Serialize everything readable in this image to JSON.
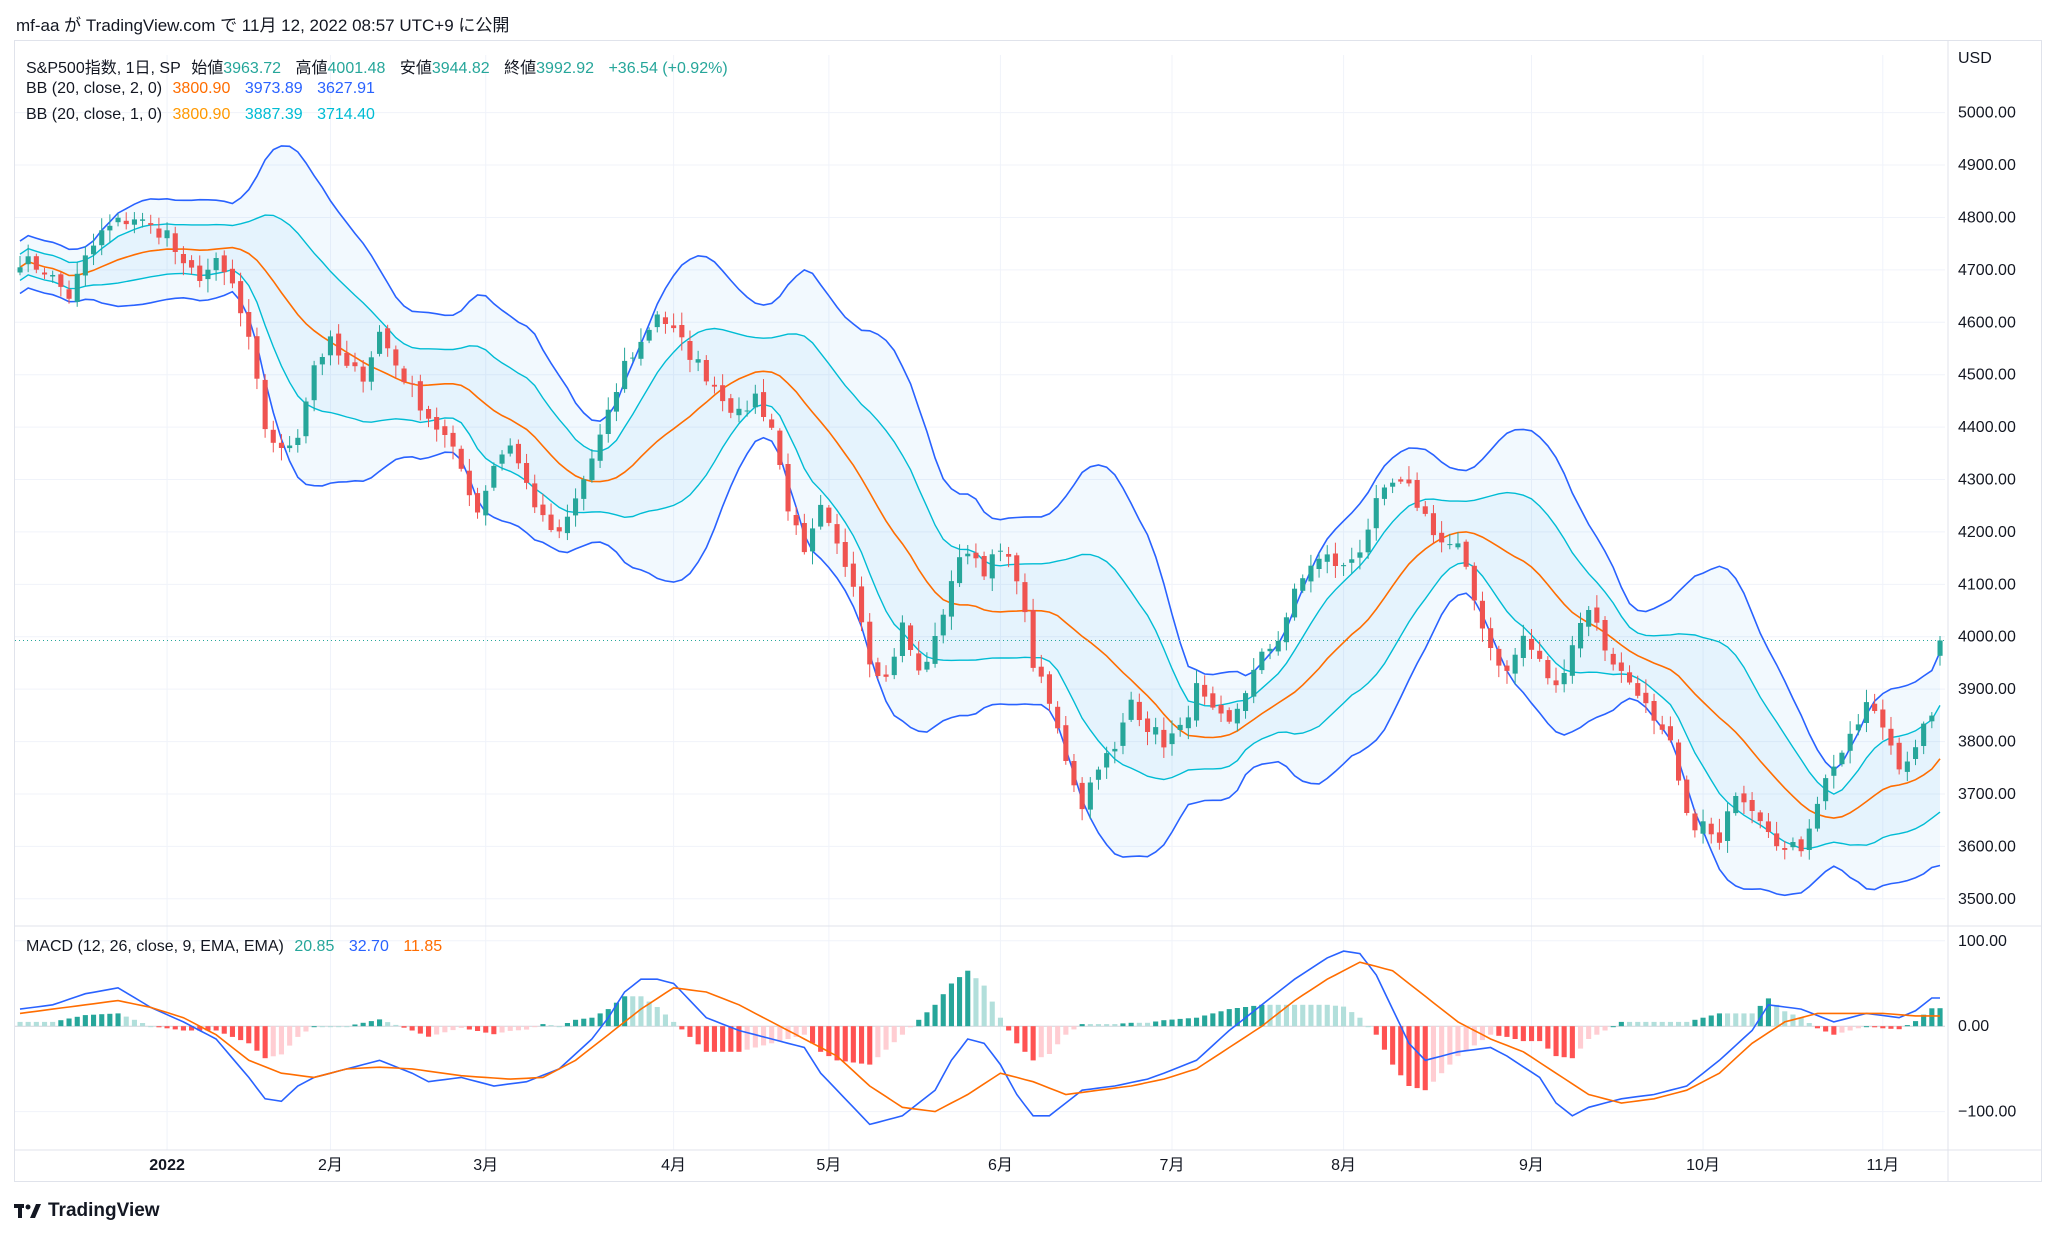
{
  "header": {
    "publisher_line": "mf-aa が TradingView.com で 11月 12, 2022 08:57 UTC+9 に公開"
  },
  "legend": {
    "symbol": "S&P500指数, 1日, SP",
    "open_label": "始値",
    "open": "3963.72",
    "high_label": "高値",
    "high": "4001.48",
    "low_label": "安値",
    "low": "3944.82",
    "close_label": "終値",
    "close": "3992.92",
    "change": "+36.54 (+0.92%)",
    "bb2": {
      "label": "BB (20, close, 2, 0)",
      "basis": "3800.90",
      "upper": "3973.89",
      "lower": "3627.91"
    },
    "bb1": {
      "label": "BB (20, close, 1, 0)",
      "basis": "3800.90",
      "upper": "3887.39",
      "lower": "3714.40"
    },
    "macd": {
      "label": "MACD (12, 26, close, 9, EMA, EMA)",
      "hist": "20.85",
      "macd": "32.70",
      "signal": "11.85"
    }
  },
  "footer": {
    "brand": "TradingView"
  },
  "colors": {
    "up": "#26a69a",
    "down": "#ef5350",
    "bb2_band": "#2962ff",
    "bb1_band": "#00bcd4",
    "basis": "#ff6d00",
    "macd_line": "#2962ff",
    "signal_line": "#ff6d00",
    "hist_up_strong": "#26a69a",
    "hist_up_weak": "#b2dfdb",
    "hist_down_strong": "#ff5252",
    "hist_down_weak": "#ffcdd2"
  },
  "chart_data": [
    {
      "type": "candlestick",
      "currency": "USD",
      "y_ticks": [
        "5000.00",
        "4900.00",
        "4800.00",
        "4700.00",
        "4600.00",
        "4500.00",
        "4400.00",
        "4300.00",
        "4200.00",
        "4100.00",
        "4000.00",
        "3900.00",
        "3800.00",
        "3700.00",
        "3600.00",
        "3500.00"
      ],
      "ylim": [
        3450,
        5110
      ],
      "x_labels": [
        {
          "label": "2022",
          "idx": 18
        },
        {
          "label": "2月",
          "idx": 38
        },
        {
          "label": "3月",
          "idx": 57
        },
        {
          "label": "4月",
          "idx": 80
        },
        {
          "label": "5月",
          "idx": 99
        },
        {
          "label": "6月",
          "idx": 120
        },
        {
          "label": "7月",
          "idx": 141
        },
        {
          "label": "8月",
          "idx": 162
        },
        {
          "label": "9月",
          "idx": 185
        },
        {
          "label": "10月",
          "idx": 206
        },
        {
          "label": "11月",
          "idx": 228
        }
      ],
      "x_count": 236,
      "close_anchors": [
        [
          0,
          4720
        ],
        [
          3,
          4700
        ],
        [
          6,
          4650
        ],
        [
          8,
          4720
        ],
        [
          10,
          4770
        ],
        [
          12,
          4790
        ],
        [
          14,
          4800
        ],
        [
          16,
          4780
        ],
        [
          18,
          4770
        ],
        [
          20,
          4700
        ],
        [
          22,
          4690
        ],
        [
          24,
          4710
        ],
        [
          26,
          4670
        ],
        [
          28,
          4560
        ],
        [
          30,
          4400
        ],
        [
          32,
          4350
        ],
        [
          34,
          4390
        ],
        [
          36,
          4520
        ],
        [
          38,
          4560
        ],
        [
          40,
          4510
        ],
        [
          42,
          4500
        ],
        [
          44,
          4580
        ],
        [
          46,
          4520
        ],
        [
          48,
          4470
        ],
        [
          50,
          4420
        ],
        [
          52,
          4380
        ],
        [
          54,
          4320
        ],
        [
          56,
          4240
        ],
        [
          58,
          4330
        ],
        [
          60,
          4370
        ],
        [
          62,
          4290
        ],
        [
          64,
          4220
        ],
        [
          66,
          4190
        ],
        [
          68,
          4260
        ],
        [
          70,
          4340
        ],
        [
          72,
          4420
        ],
        [
          74,
          4520
        ],
        [
          76,
          4560
        ],
        [
          78,
          4620
        ],
        [
          80,
          4580
        ],
        [
          82,
          4540
        ],
        [
          84,
          4500
        ],
        [
          86,
          4460
        ],
        [
          88,
          4420
        ],
        [
          90,
          4460
        ],
        [
          92,
          4400
        ],
        [
          94,
          4250
        ],
        [
          96,
          4150
        ],
        [
          98,
          4240
        ],
        [
          100,
          4170
        ],
        [
          102,
          4110
        ],
        [
          104,
          3960
        ],
        [
          106,
          3920
        ],
        [
          108,
          4020
        ],
        [
          110,
          3930
        ],
        [
          112,
          3990
        ],
        [
          114,
          4110
        ],
        [
          116,
          4170
        ],
        [
          118,
          4130
        ],
        [
          120,
          4160
        ],
        [
          122,
          4120
        ],
        [
          124,
          3950
        ],
        [
          126,
          3870
        ],
        [
          128,
          3770
        ],
        [
          130,
          3680
        ],
        [
          132,
          3760
        ],
        [
          134,
          3780
        ],
        [
          136,
          3880
        ],
        [
          138,
          3830
        ],
        [
          140,
          3800
        ],
        [
          142,
          3820
        ],
        [
          144,
          3900
        ],
        [
          146,
          3850
        ],
        [
          148,
          3830
        ],
        [
          150,
          3900
        ],
        [
          152,
          3960
        ],
        [
          154,
          4000
        ],
        [
          156,
          4080
        ],
        [
          158,
          4140
        ],
        [
          160,
          4150
        ],
        [
          162,
          4130
        ],
        [
          164,
          4170
        ],
        [
          166,
          4250
        ],
        [
          168,
          4290
        ],
        [
          170,
          4280
        ],
        [
          172,
          4230
        ],
        [
          174,
          4180
        ],
        [
          176,
          4170
        ],
        [
          178,
          4070
        ],
        [
          180,
          3980
        ],
        [
          182,
          3930
        ],
        [
          184,
          4000
        ],
        [
          186,
          3950
        ],
        [
          188,
          3900
        ],
        [
          190,
          3990
        ],
        [
          192,
          4060
        ],
        [
          194,
          3980
        ],
        [
          196,
          3930
        ],
        [
          198,
          3900
        ],
        [
          200,
          3830
        ],
        [
          202,
          3790
        ],
        [
          204,
          3650
        ],
        [
          206,
          3640
        ],
        [
          208,
          3600
        ],
        [
          210,
          3710
        ],
        [
          212,
          3680
        ],
        [
          214,
          3640
        ],
        [
          216,
          3590
        ],
        [
          218,
          3600
        ],
        [
          220,
          3690
        ],
        [
          222,
          3760
        ],
        [
          224,
          3800
        ],
        [
          226,
          3870
        ],
        [
          228,
          3830
        ],
        [
          230,
          3760
        ],
        [
          232,
          3780
        ],
        [
          234,
          3860
        ],
        [
          235,
          3993
        ]
      ]
    },
    {
      "type": "macd",
      "y_ticks": [
        "100.00",
        "0.00",
        "−100.00"
      ],
      "ylim": [
        -145,
        115
      ],
      "macd_anchors": [
        [
          0,
          20
        ],
        [
          4,
          25
        ],
        [
          8,
          38
        ],
        [
          12,
          45
        ],
        [
          16,
          22
        ],
        [
          20,
          5
        ],
        [
          24,
          -15
        ],
        [
          28,
          -60
        ],
        [
          30,
          -85
        ],
        [
          32,
          -88
        ],
        [
          34,
          -70
        ],
        [
          36,
          -60
        ],
        [
          40,
          -50
        ],
        [
          44,
          -40
        ],
        [
          48,
          -55
        ],
        [
          50,
          -65
        ],
        [
          54,
          -60
        ],
        [
          58,
          -70
        ],
        [
          62,
          -65
        ],
        [
          66,
          -50
        ],
        [
          70,
          -15
        ],
        [
          72,
          10
        ],
        [
          74,
          40
        ],
        [
          76,
          55
        ],
        [
          78,
          55
        ],
        [
          80,
          50
        ],
        [
          84,
          10
        ],
        [
          88,
          -5
        ],
        [
          92,
          -15
        ],
        [
          96,
          -25
        ],
        [
          98,
          -55
        ],
        [
          100,
          -75
        ],
        [
          102,
          -95
        ],
        [
          104,
          -115
        ],
        [
          106,
          -110
        ],
        [
          108,
          -105
        ],
        [
          112,
          -75
        ],
        [
          114,
          -40
        ],
        [
          116,
          -15
        ],
        [
          118,
          -20
        ],
        [
          120,
          -45
        ],
        [
          122,
          -80
        ],
        [
          124,
          -105
        ],
        [
          126,
          -105
        ],
        [
          130,
          -75
        ],
        [
          134,
          -70
        ],
        [
          138,
          -62
        ],
        [
          140,
          -55
        ],
        [
          144,
          -40
        ],
        [
          148,
          -5
        ],
        [
          152,
          25
        ],
        [
          156,
          55
        ],
        [
          160,
          80
        ],
        [
          162,
          88
        ],
        [
          164,
          85
        ],
        [
          166,
          60
        ],
        [
          168,
          20
        ],
        [
          170,
          -20
        ],
        [
          172,
          -40
        ],
        [
          176,
          -30
        ],
        [
          180,
          -25
        ],
        [
          182,
          -35
        ],
        [
          186,
          -60
        ],
        [
          188,
          -90
        ],
        [
          190,
          -105
        ],
        [
          192,
          -95
        ],
        [
          196,
          -85
        ],
        [
          200,
          -80
        ],
        [
          204,
          -70
        ],
        [
          208,
          -40
        ],
        [
          212,
          -5
        ],
        [
          214,
          25
        ],
        [
          218,
          20
        ],
        [
          222,
          5
        ],
        [
          226,
          15
        ],
        [
          230,
          10
        ],
        [
          232,
          18
        ],
        [
          234,
          33
        ]
      ],
      "signal_anchors": [
        [
          0,
          15
        ],
        [
          8,
          25
        ],
        [
          12,
          30
        ],
        [
          16,
          22
        ],
        [
          20,
          10
        ],
        [
          24,
          -10
        ],
        [
          28,
          -40
        ],
        [
          32,
          -55
        ],
        [
          36,
          -60
        ],
        [
          40,
          -50
        ],
        [
          44,
          -48
        ],
        [
          48,
          -50
        ],
        [
          54,
          -58
        ],
        [
          60,
          -62
        ],
        [
          64,
          -60
        ],
        [
          68,
          -40
        ],
        [
          72,
          -10
        ],
        [
          76,
          20
        ],
        [
          80,
          45
        ],
        [
          84,
          40
        ],
        [
          88,
          25
        ],
        [
          92,
          5
        ],
        [
          96,
          -15
        ],
        [
          100,
          -35
        ],
        [
          104,
          -70
        ],
        [
          108,
          -95
        ],
        [
          112,
          -100
        ],
        [
          116,
          -80
        ],
        [
          120,
          -55
        ],
        [
          124,
          -65
        ],
        [
          128,
          -80
        ],
        [
          132,
          -75
        ],
        [
          136,
          -70
        ],
        [
          140,
          -62
        ],
        [
          144,
          -50
        ],
        [
          148,
          -25
        ],
        [
          152,
          0
        ],
        [
          156,
          30
        ],
        [
          160,
          55
        ],
        [
          164,
          75
        ],
        [
          168,
          65
        ],
        [
          172,
          35
        ],
        [
          176,
          5
        ],
        [
          180,
          -15
        ],
        [
          184,
          -30
        ],
        [
          188,
          -55
        ],
        [
          192,
          -80
        ],
        [
          196,
          -90
        ],
        [
          200,
          -85
        ],
        [
          204,
          -75
        ],
        [
          208,
          -55
        ],
        [
          212,
          -20
        ],
        [
          216,
          5
        ],
        [
          220,
          15
        ],
        [
          224,
          15
        ],
        [
          228,
          15
        ],
        [
          232,
          12
        ],
        [
          234,
          12
        ]
      ]
    }
  ]
}
